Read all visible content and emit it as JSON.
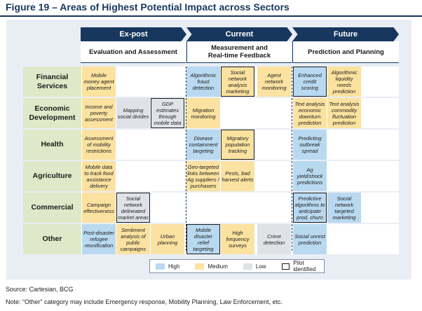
{
  "title": "Figure 19 – Areas of Highest Potential Impact across Sectors",
  "phases": [
    {
      "label": "Ex-post",
      "sublabel": "Evaluation and Assessment"
    },
    {
      "label": "Current",
      "sublabel": "Measurement and Real-time Feedback"
    },
    {
      "label": "Future",
      "sublabel": "Prediction and Planning"
    }
  ],
  "sectors": [
    "Financial Services",
    "Economic Development",
    "Health",
    "Agriculture",
    "Commercial",
    "Other"
  ],
  "cells": [
    {
      "row": 0,
      "col": 0,
      "text": "Mobile money agent placement",
      "level": "medium",
      "pilot": false
    },
    {
      "row": 0,
      "col": 3,
      "text": "Algorithmic fraud detection",
      "level": "high",
      "pilot": false
    },
    {
      "row": 0,
      "col": 4,
      "text": "Social network analysis marketing",
      "level": "medium",
      "pilot": true
    },
    {
      "row": 0,
      "col": 5,
      "text": "Agent network monitoring",
      "level": "medium",
      "pilot": false
    },
    {
      "row": 0,
      "col": 6,
      "text": "Enhanced credit scoring",
      "level": "high",
      "pilot": true
    },
    {
      "row": 0,
      "col": 7,
      "text": "Algorithmic liquidity needs prediction",
      "level": "medium",
      "pilot": false
    },
    {
      "row": 1,
      "col": 0,
      "text": "Income and poverty assessment",
      "level": "medium",
      "pilot": false
    },
    {
      "row": 1,
      "col": 1,
      "text": "Mapping social divides",
      "level": "low",
      "pilot": false
    },
    {
      "row": 1,
      "col": 2,
      "text": "GDP estimates through mobile data",
      "level": "low",
      "pilot": true
    },
    {
      "row": 1,
      "col": 3,
      "text": "Migration monitoring",
      "level": "medium",
      "pilot": false
    },
    {
      "row": 1,
      "col": 6,
      "text": "Text analysis economic downturn prediction",
      "level": "medium",
      "pilot": false
    },
    {
      "row": 1,
      "col": 7,
      "text": "Text analysis commodity fluctuation prediction",
      "level": "medium",
      "pilot": false
    },
    {
      "row": 2,
      "col": 0,
      "text": "Assessment of mobility restrictions",
      "level": "medium",
      "pilot": false
    },
    {
      "row": 2,
      "col": 3,
      "text": "Disease containment targeting",
      "level": "high",
      "pilot": false
    },
    {
      "row": 2,
      "col": 4,
      "text": "Migratory population tracking",
      "level": "medium",
      "pilot": true
    },
    {
      "row": 2,
      "col": 6,
      "text": "Predicting outbreak spread",
      "level": "high",
      "pilot": false
    },
    {
      "row": 3,
      "col": 0,
      "text": "Mobile data to track food assistance delivery",
      "level": "medium",
      "pilot": false
    },
    {
      "row": 3,
      "col": 3,
      "text": "Geo-targeted links between Ag suppliers / purchasers",
      "level": "medium",
      "pilot": false
    },
    {
      "row": 3,
      "col": 4,
      "text": "Pests, bad harvest alerts",
      "level": "medium",
      "pilot": false
    },
    {
      "row": 3,
      "col": 6,
      "text": "Ag yield/shock predictions",
      "level": "high",
      "pilot": false
    },
    {
      "row": 4,
      "col": 0,
      "text": "Campaign effectiveness",
      "level": "medium",
      "pilot": false
    },
    {
      "row": 4,
      "col": 1,
      "text": "Social network delineated market areas",
      "level": "low",
      "pilot": true
    },
    {
      "row": 4,
      "col": 6,
      "text": "Predictive algorithms to anticipate prod. churn",
      "level": "high",
      "pilot": true
    },
    {
      "row": 4,
      "col": 7,
      "text": "Social network targeted marketing",
      "level": "high",
      "pilot": false
    },
    {
      "row": 5,
      "col": 0,
      "text": "Post-disaster refugee reunification",
      "level": "high",
      "pilot": false
    },
    {
      "row": 5,
      "col": 1,
      "text": "Sentiment analysis of public campaigns",
      "level": "medium",
      "pilot": false
    },
    {
      "row": 5,
      "col": 2,
      "text": "Urban planning",
      "level": "medium",
      "pilot": false
    },
    {
      "row": 5,
      "col": 3,
      "text": "Mobile disaster relief targeting",
      "level": "high",
      "pilot": true
    },
    {
      "row": 5,
      "col": 4,
      "text": "High frequency surveys",
      "level": "medium",
      "pilot": false
    },
    {
      "row": 5,
      "col": 5,
      "text": "Crime detection",
      "level": "low",
      "pilot": false
    },
    {
      "row": 5,
      "col": 6,
      "text": "Social unrest prediction",
      "level": "high",
      "pilot": false
    }
  ],
  "legend": [
    {
      "label": "High",
      "level": "high"
    },
    {
      "label": "Medium",
      "level": "medium"
    },
    {
      "label": "Low",
      "level": "low"
    },
    {
      "label": "Pilot identified",
      "level": "pilot"
    }
  ],
  "colors": {
    "navy": "#17375e",
    "high": "#b9d9f0",
    "medium": "#fbe2a0",
    "low": "#dfe3e8",
    "sector": "#dfe8c8"
  },
  "source": "Source: Cartesian, BCG",
  "note": "Note: “Other” category may include Emergency response, Mobility Planning, Law Enforcement, etc."
}
